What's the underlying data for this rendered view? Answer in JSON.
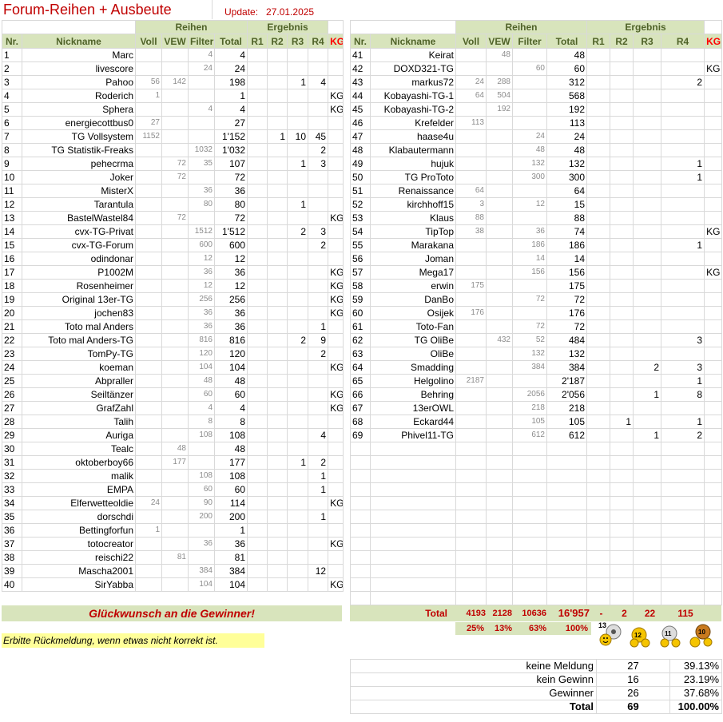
{
  "header": {
    "title": "Forum-Reihen + Ausbeute",
    "update_label": "Update:",
    "update_date": "27.01.2025"
  },
  "columns": {
    "group_reihen": "Reihen",
    "group_ergebnis": "Ergebnis",
    "nr": "Nr.",
    "nickname": "Nickname",
    "voll": "Voll",
    "vew": "VEW",
    "filter": "Filter",
    "total": "Total",
    "r1": "R1",
    "r2": "R2",
    "r3": "R3",
    "r4": "R4",
    "kg": "KG"
  },
  "rows_left": [
    {
      "nr": "1",
      "nick": "Marc",
      "voll": "",
      "vew": "",
      "filter": "4",
      "total": "4",
      "r1": "",
      "r2": "",
      "r3": "",
      "r4": "",
      "kg": ""
    },
    {
      "nr": "2",
      "nick": "livescore",
      "voll": "",
      "vew": "",
      "filter": "24",
      "total": "24",
      "r1": "",
      "r2": "",
      "r3": "",
      "r4": "",
      "kg": ""
    },
    {
      "nr": "3",
      "nick": "Pahoo",
      "voll": "56",
      "vew": "142",
      "filter": "",
      "total": "198",
      "r1": "",
      "r2": "",
      "r3": "1",
      "r4": "4",
      "kg": ""
    },
    {
      "nr": "4",
      "nick": "Roderich",
      "voll": "1",
      "vew": "",
      "filter": "",
      "total": "1",
      "r1": "",
      "r2": "",
      "r3": "",
      "r4": "",
      "kg": "KG"
    },
    {
      "nr": "5",
      "nick": "Sphera",
      "voll": "",
      "vew": "",
      "filter": "4",
      "total": "4",
      "r1": "",
      "r2": "",
      "r3": "",
      "r4": "",
      "kg": "KG"
    },
    {
      "nr": "6",
      "nick": "energiecottbus0",
      "voll": "27",
      "vew": "",
      "filter": "",
      "total": "27",
      "r1": "",
      "r2": "",
      "r3": "",
      "r4": "",
      "kg": ""
    },
    {
      "nr": "7",
      "nick": "TG Vollsystem",
      "voll": "1152",
      "vew": "",
      "filter": "",
      "total": "1'152",
      "r1": "",
      "r2": "1",
      "r3": "10",
      "r4": "45",
      "kg": ""
    },
    {
      "nr": "8",
      "nick": "TG Statistik-Freaks",
      "voll": "",
      "vew": "",
      "filter": "1032",
      "total": "1'032",
      "r1": "",
      "r2": "",
      "r3": "",
      "r4": "2",
      "kg": ""
    },
    {
      "nr": "9",
      "nick": "pehecrma",
      "voll": "",
      "vew": "72",
      "filter": "35",
      "total": "107",
      "r1": "",
      "r2": "",
      "r3": "1",
      "r4": "3",
      "kg": ""
    },
    {
      "nr": "10",
      "nick": "Joker",
      "voll": "",
      "vew": "72",
      "filter": "",
      "total": "72",
      "r1": "",
      "r2": "",
      "r3": "",
      "r4": "",
      "kg": ""
    },
    {
      "nr": "11",
      "nick": "MisterX",
      "voll": "",
      "vew": "",
      "filter": "36",
      "total": "36",
      "r1": "",
      "r2": "",
      "r3": "",
      "r4": "",
      "kg": ""
    },
    {
      "nr": "12",
      "nick": "Tarantula",
      "voll": "",
      "vew": "",
      "filter": "80",
      "total": "80",
      "r1": "",
      "r2": "",
      "r3": "1",
      "r4": "",
      "kg": ""
    },
    {
      "nr": "13",
      "nick": "BastelWastel84",
      "voll": "",
      "vew": "72",
      "filter": "",
      "total": "72",
      "r1": "",
      "r2": "",
      "r3": "",
      "r4": "",
      "kg": "KG"
    },
    {
      "nr": "14",
      "nick": "cvx-TG-Privat",
      "voll": "",
      "vew": "",
      "filter": "1512",
      "total": "1'512",
      "r1": "",
      "r2": "",
      "r3": "2",
      "r4": "3",
      "kg": ""
    },
    {
      "nr": "15",
      "nick": "cvx-TG-Forum",
      "voll": "",
      "vew": "",
      "filter": "600",
      "total": "600",
      "r1": "",
      "r2": "",
      "r3": "",
      "r4": "2",
      "kg": ""
    },
    {
      "nr": "16",
      "nick": "odindonar",
      "voll": "",
      "vew": "",
      "filter": "12",
      "total": "12",
      "r1": "",
      "r2": "",
      "r3": "",
      "r4": "",
      "kg": ""
    },
    {
      "nr": "17",
      "nick": "P1002M",
      "voll": "",
      "vew": "",
      "filter": "36",
      "total": "36",
      "r1": "",
      "r2": "",
      "r3": "",
      "r4": "",
      "kg": "KG"
    },
    {
      "nr": "18",
      "nick": "Rosenheimer",
      "voll": "",
      "vew": "",
      "filter": "12",
      "total": "12",
      "r1": "",
      "r2": "",
      "r3": "",
      "r4": "",
      "kg": "KG"
    },
    {
      "nr": "19",
      "nick": "Original 13er-TG",
      "voll": "",
      "vew": "",
      "filter": "256",
      "total": "256",
      "r1": "",
      "r2": "",
      "r3": "",
      "r4": "",
      "kg": "KG"
    },
    {
      "nr": "20",
      "nick": "jochen83",
      "voll": "",
      "vew": "",
      "filter": "36",
      "total": "36",
      "r1": "",
      "r2": "",
      "r3": "",
      "r4": "",
      "kg": "KG"
    },
    {
      "nr": "21",
      "nick": "Toto mal Anders",
      "voll": "",
      "vew": "",
      "filter": "36",
      "total": "36",
      "r1": "",
      "r2": "",
      "r3": "",
      "r4": "1",
      "kg": ""
    },
    {
      "nr": "22",
      "nick": "Toto mal Anders-TG",
      "voll": "",
      "vew": "",
      "filter": "816",
      "total": "816",
      "r1": "",
      "r2": "",
      "r3": "2",
      "r4": "9",
      "kg": ""
    },
    {
      "nr": "23",
      "nick": "TomPy-TG",
      "voll": "",
      "vew": "",
      "filter": "120",
      "total": "120",
      "r1": "",
      "r2": "",
      "r3": "",
      "r4": "2",
      "kg": ""
    },
    {
      "nr": "24",
      "nick": "koeman",
      "voll": "",
      "vew": "",
      "filter": "104",
      "total": "104",
      "r1": "",
      "r2": "",
      "r3": "",
      "r4": "",
      "kg": "KG"
    },
    {
      "nr": "25",
      "nick": "Abpraller",
      "voll": "",
      "vew": "",
      "filter": "48",
      "total": "48",
      "r1": "",
      "r2": "",
      "r3": "",
      "r4": "",
      "kg": ""
    },
    {
      "nr": "26",
      "nick": "Seiltänzer",
      "voll": "",
      "vew": "",
      "filter": "60",
      "total": "60",
      "r1": "",
      "r2": "",
      "r3": "",
      "r4": "",
      "kg": "KG"
    },
    {
      "nr": "27",
      "nick": "GrafZahl",
      "voll": "",
      "vew": "",
      "filter": "4",
      "total": "4",
      "r1": "",
      "r2": "",
      "r3": "",
      "r4": "",
      "kg": "KG"
    },
    {
      "nr": "28",
      "nick": "Talih",
      "voll": "",
      "vew": "",
      "filter": "8",
      "total": "8",
      "r1": "",
      "r2": "",
      "r3": "",
      "r4": "",
      "kg": ""
    },
    {
      "nr": "29",
      "nick": "Auriga",
      "voll": "",
      "vew": "",
      "filter": "108",
      "total": "108",
      "r1": "",
      "r2": "",
      "r3": "",
      "r4": "4",
      "kg": ""
    },
    {
      "nr": "30",
      "nick": "Tealc",
      "voll": "",
      "vew": "48",
      "filter": "",
      "total": "48",
      "r1": "",
      "r2": "",
      "r3": "",
      "r4": "",
      "kg": ""
    },
    {
      "nr": "31",
      "nick": "oktoberboy66",
      "voll": "",
      "vew": "177",
      "filter": "",
      "total": "177",
      "r1": "",
      "r2": "",
      "r3": "1",
      "r4": "2",
      "kg": ""
    },
    {
      "nr": "32",
      "nick": "malik",
      "voll": "",
      "vew": "",
      "filter": "108",
      "total": "108",
      "r1": "",
      "r2": "",
      "r3": "",
      "r4": "1",
      "kg": ""
    },
    {
      "nr": "33",
      "nick": "EMPA",
      "voll": "",
      "vew": "",
      "filter": "60",
      "total": "60",
      "r1": "",
      "r2": "",
      "r3": "",
      "r4": "1",
      "kg": ""
    },
    {
      "nr": "34",
      "nick": "Elferwetteoldie",
      "voll": "24",
      "vew": "",
      "filter": "90",
      "total": "114",
      "r1": "",
      "r2": "",
      "r3": "",
      "r4": "",
      "kg": "KG"
    },
    {
      "nr": "35",
      "nick": "dorschdi",
      "voll": "",
      "vew": "",
      "filter": "200",
      "total": "200",
      "r1": "",
      "r2": "",
      "r3": "",
      "r4": "1",
      "kg": ""
    },
    {
      "nr": "36",
      "nick": "Bettingforfun",
      "voll": "1",
      "vew": "",
      "filter": "",
      "total": "1",
      "r1": "",
      "r2": "",
      "r3": "",
      "r4": "",
      "kg": ""
    },
    {
      "nr": "37",
      "nick": "totocreator",
      "voll": "",
      "vew": "",
      "filter": "36",
      "total": "36",
      "r1": "",
      "r2": "",
      "r3": "",
      "r4": "",
      "kg": "KG"
    },
    {
      "nr": "38",
      "nick": "reischi22",
      "voll": "",
      "vew": "81",
      "filter": "",
      "total": "81",
      "r1": "",
      "r2": "",
      "r3": "",
      "r4": "",
      "kg": ""
    },
    {
      "nr": "39",
      "nick": "Mascha2001",
      "voll": "",
      "vew": "",
      "filter": "384",
      "total": "384",
      "r1": "",
      "r2": "",
      "r3": "",
      "r4": "12",
      "kg": ""
    },
    {
      "nr": "40",
      "nick": "SirYabba",
      "voll": "",
      "vew": "",
      "filter": "104",
      "total": "104",
      "r1": "",
      "r2": "",
      "r3": "",
      "r4": "",
      "kg": "KG"
    }
  ],
  "rows_right": [
    {
      "nr": "41",
      "nick": "Keirat",
      "voll": "",
      "vew": "48",
      "filter": "",
      "total": "48",
      "r1": "",
      "r2": "",
      "r3": "",
      "r4": "",
      "kg": ""
    },
    {
      "nr": "42",
      "nick": "DOXD321-TG",
      "voll": "",
      "vew": "",
      "filter": "60",
      "total": "60",
      "r1": "",
      "r2": "",
      "r3": "",
      "r4": "",
      "kg": "KG"
    },
    {
      "nr": "43",
      "nick": "markus72",
      "voll": "24",
      "vew": "288",
      "filter": "",
      "total": "312",
      "r1": "",
      "r2": "",
      "r3": "",
      "r4": "2",
      "kg": ""
    },
    {
      "nr": "44",
      "nick": "Kobayashi-TG-1",
      "voll": "64",
      "vew": "504",
      "filter": "",
      "total": "568",
      "r1": "",
      "r2": "",
      "r3": "",
      "r4": "",
      "kg": ""
    },
    {
      "nr": "45",
      "nick": "Kobayashi-TG-2",
      "voll": "",
      "vew": "192",
      "filter": "",
      "total": "192",
      "r1": "",
      "r2": "",
      "r3": "",
      "r4": "",
      "kg": ""
    },
    {
      "nr": "46",
      "nick": "Krefelder",
      "voll": "113",
      "vew": "",
      "filter": "",
      "total": "113",
      "r1": "",
      "r2": "",
      "r3": "",
      "r4": "",
      "kg": ""
    },
    {
      "nr": "47",
      "nick": "haase4u",
      "voll": "",
      "vew": "",
      "filter": "24",
      "total": "24",
      "r1": "",
      "r2": "",
      "r3": "",
      "r4": "",
      "kg": ""
    },
    {
      "nr": "48",
      "nick": "Klabautermann",
      "voll": "",
      "vew": "",
      "filter": "48",
      "total": "48",
      "r1": "",
      "r2": "",
      "r3": "",
      "r4": "",
      "kg": ""
    },
    {
      "nr": "49",
      "nick": "hujuk",
      "voll": "",
      "vew": "",
      "filter": "132",
      "total": "132",
      "r1": "",
      "r2": "",
      "r3": "",
      "r4": "1",
      "kg": ""
    },
    {
      "nr": "50",
      "nick": "TG ProToto",
      "voll": "",
      "vew": "",
      "filter": "300",
      "total": "300",
      "r1": "",
      "r2": "",
      "r3": "",
      "r4": "1",
      "kg": ""
    },
    {
      "nr": "51",
      "nick": "Renaissance",
      "voll": "64",
      "vew": "",
      "filter": "",
      "total": "64",
      "r1": "",
      "r2": "",
      "r3": "",
      "r4": "",
      "kg": ""
    },
    {
      "nr": "52",
      "nick": "kirchhoff15",
      "voll": "3",
      "vew": "",
      "filter": "12",
      "total": "15",
      "r1": "",
      "r2": "",
      "r3": "",
      "r4": "",
      "kg": ""
    },
    {
      "nr": "53",
      "nick": "Klaus",
      "voll": "88",
      "vew": "",
      "filter": "",
      "total": "88",
      "r1": "",
      "r2": "",
      "r3": "",
      "r4": "",
      "kg": ""
    },
    {
      "nr": "54",
      "nick": "TipTop",
      "voll": "38",
      "vew": "",
      "filter": "36",
      "total": "74",
      "r1": "",
      "r2": "",
      "r3": "",
      "r4": "",
      "kg": "KG"
    },
    {
      "nr": "55",
      "nick": "Marakana",
      "voll": "",
      "vew": "",
      "filter": "186",
      "total": "186",
      "r1": "",
      "r2": "",
      "r3": "",
      "r4": "1",
      "kg": ""
    },
    {
      "nr": "56",
      "nick": "Joman",
      "voll": "",
      "vew": "",
      "filter": "14",
      "total": "14",
      "r1": "",
      "r2": "",
      "r3": "",
      "r4": "",
      "kg": ""
    },
    {
      "nr": "57",
      "nick": "Mega17",
      "voll": "",
      "vew": "",
      "filter": "156",
      "total": "156",
      "r1": "",
      "r2": "",
      "r3": "",
      "r4": "",
      "kg": "KG"
    },
    {
      "nr": "58",
      "nick": "erwin",
      "voll": "175",
      "vew": "",
      "filter": "",
      "total": "175",
      "r1": "",
      "r2": "",
      "r3": "",
      "r4": "",
      "kg": ""
    },
    {
      "nr": "59",
      "nick": "DanBo",
      "voll": "",
      "vew": "",
      "filter": "72",
      "total": "72",
      "r1": "",
      "r2": "",
      "r3": "",
      "r4": "",
      "kg": ""
    },
    {
      "nr": "60",
      "nick": "Osijek",
      "voll": "176",
      "vew": "",
      "filter": "",
      "total": "176",
      "r1": "",
      "r2": "",
      "r3": "",
      "r4": "",
      "kg": ""
    },
    {
      "nr": "61",
      "nick": "Toto-Fan",
      "voll": "",
      "vew": "",
      "filter": "72",
      "total": "72",
      "r1": "",
      "r2": "",
      "r3": "",
      "r4": "",
      "kg": ""
    },
    {
      "nr": "62",
      "nick": "TG OliBe",
      "voll": "",
      "vew": "432",
      "filter": "52",
      "total": "484",
      "r1": "",
      "r2": "",
      "r3": "",
      "r4": "3",
      "kg": ""
    },
    {
      "nr": "63",
      "nick": "OliBe",
      "voll": "",
      "vew": "",
      "filter": "132",
      "total": "132",
      "r1": "",
      "r2": "",
      "r3": "",
      "r4": "",
      "kg": ""
    },
    {
      "nr": "64",
      "nick": "Smadding",
      "voll": "",
      "vew": "",
      "filter": "384",
      "total": "384",
      "r1": "",
      "r2": "",
      "r3": "2",
      "r4": "3",
      "kg": ""
    },
    {
      "nr": "65",
      "nick": "Helgolino",
      "voll": "2187",
      "vew": "",
      "filter": "",
      "total": "2'187",
      "r1": "",
      "r2": "",
      "r3": "",
      "r4": "1",
      "kg": ""
    },
    {
      "nr": "66",
      "nick": "Behring",
      "voll": "",
      "vew": "",
      "filter": "2056",
      "total": "2'056",
      "r1": "",
      "r2": "",
      "r3": "1",
      "r4": "8",
      "kg": ""
    },
    {
      "nr": "67",
      "nick": "13erOWL",
      "voll": "",
      "vew": "",
      "filter": "218",
      "total": "218",
      "r1": "",
      "r2": "",
      "r3": "",
      "r4": "",
      "kg": ""
    },
    {
      "nr": "68",
      "nick": "Eckard44",
      "voll": "",
      "vew": "",
      "filter": "105",
      "total": "105",
      "r1": "",
      "r2": "1",
      "r3": "",
      "r4": "1",
      "kg": ""
    },
    {
      "nr": "69",
      "nick": "Phivel11-TG",
      "voll": "",
      "vew": "",
      "filter": "612",
      "total": "612",
      "r1": "",
      "r2": "",
      "r3": "1",
      "r4": "2",
      "kg": ""
    }
  ],
  "congrats": "Glückwunsch an die Gewinner!",
  "note": "Erbitte Rückmeldung, wenn etwas nicht korrekt ist.",
  "totals": {
    "label": "Total",
    "voll": "4193",
    "vew": "2128",
    "filter": "10636",
    "total": "16'957",
    "r1": "-",
    "r2": "2",
    "r3": "22",
    "r4": "115"
  },
  "percents": {
    "voll": "25%",
    "vew": "13%",
    "filter": "63%",
    "total": "100%"
  },
  "icon_labels": {
    "badge_13": "13",
    "badge_12": "12",
    "badge_11": "11",
    "badge_10": "10"
  },
  "stats": [
    {
      "label": "keine Meldung",
      "count": "27",
      "pct": "39.13%"
    },
    {
      "label": "kein Gewinn",
      "count": "16",
      "pct": "23.19%"
    },
    {
      "label": "Gewinner",
      "count": "26",
      "pct": "37.68%"
    }
  ],
  "stats_total": {
    "label": "Total",
    "count": "69",
    "pct": "100.00%"
  },
  "colors": {
    "header_bg": "#d8e4bc",
    "header_text": "#4f6228",
    "accent_red": "#c00000",
    "kg_red": "#ff0000",
    "note_bg": "#ffff99"
  }
}
